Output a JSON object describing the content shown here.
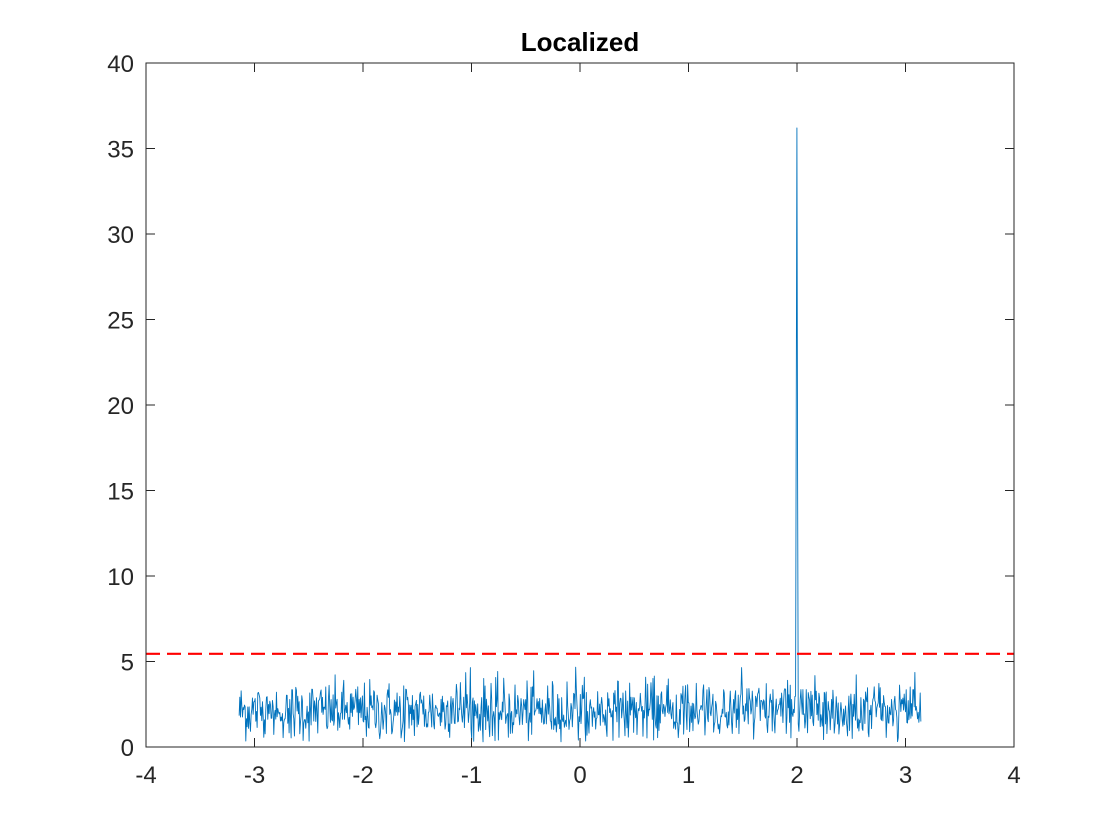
{
  "chart_data": {
    "type": "line",
    "title": "Localized",
    "xlabel": "",
    "ylabel": "",
    "xlim": [
      -4,
      4
    ],
    "ylim": [
      0,
      40
    ],
    "x_ticks": [
      -4,
      -3,
      -2,
      -1,
      0,
      1,
      2,
      3,
      4
    ],
    "y_ticks": [
      0,
      5,
      10,
      15,
      20,
      25,
      30,
      35,
      40
    ],
    "x_tick_labels": [
      "-4",
      "-3",
      "-2",
      "-1",
      "0",
      "1",
      "2",
      "3",
      "4"
    ],
    "y_tick_labels": [
      "0",
      "5",
      "10",
      "15",
      "20",
      "25",
      "30",
      "35",
      "40"
    ],
    "grid": false,
    "box": true,
    "series": [
      {
        "style": "solid",
        "color": "#0072BD",
        "x_range": [
          -3.1416,
          3.1416
        ],
        "points": 1024,
        "baseline_level": 2.1,
        "noise_typical_range": [
          0.3,
          4.8
        ],
        "peaks": [
          {
            "x": 2.0,
            "y": 36.2
          }
        ]
      },
      {
        "style": "dashed",
        "color": "#FF0000",
        "y": 5.45,
        "x_range": [
          -4,
          4
        ]
      }
    ]
  },
  "colors": {
    "signal": "#0072BD",
    "threshold": "#FF0000",
    "axes": "#262626",
    "title": "#000000"
  }
}
